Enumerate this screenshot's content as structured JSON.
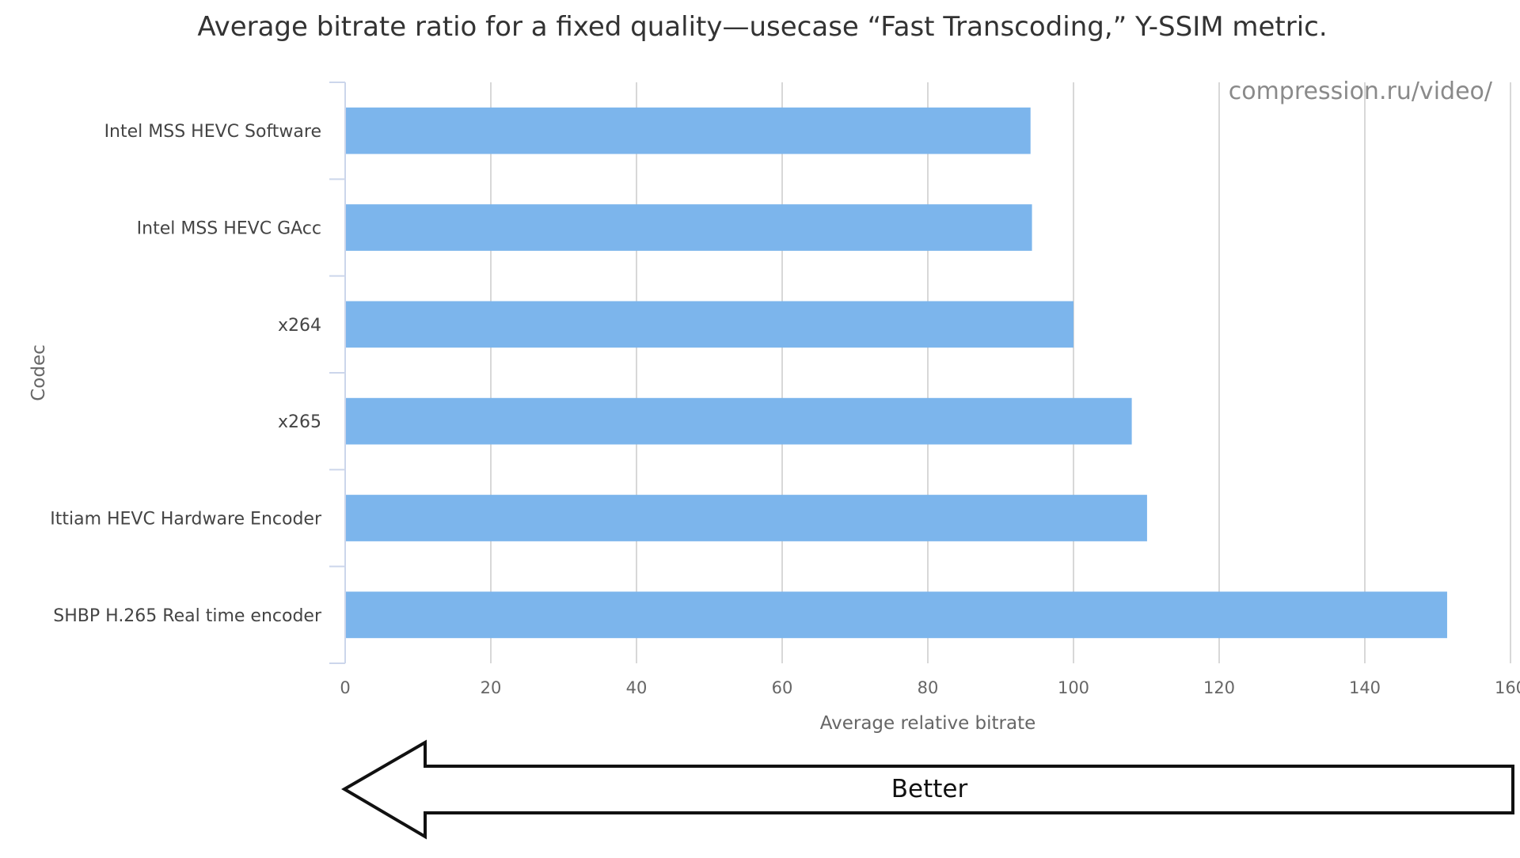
{
  "chart_data": {
    "type": "bar",
    "orientation": "horizontal",
    "title": "Average bitrate ratio for a fixed quality—usecase “Fast Transcoding,” Y-SSIM metric.",
    "xlabel": "Average relative bitrate",
    "ylabel": "Codec",
    "xlim": [
      0,
      160
    ],
    "x_ticks": [
      "0",
      "20",
      "40",
      "60",
      "80",
      "100",
      "120",
      "140",
      "160"
    ],
    "grid": true,
    "categories": [
      "Intel MSS HEVC Software",
      "Intel MSS HEVC GAcc",
      "x264",
      "x265",
      "Ittiam HEVC Hardware Encoder",
      "SHBP H.265 Real time encoder"
    ],
    "values": [
      94.1,
      94.3,
      100,
      108,
      110.1,
      151.3
    ],
    "bar_color": "#7cb5ec",
    "watermark": "compression.ru/video/",
    "arrow_label": "Better",
    "arrow_direction": "left"
  }
}
